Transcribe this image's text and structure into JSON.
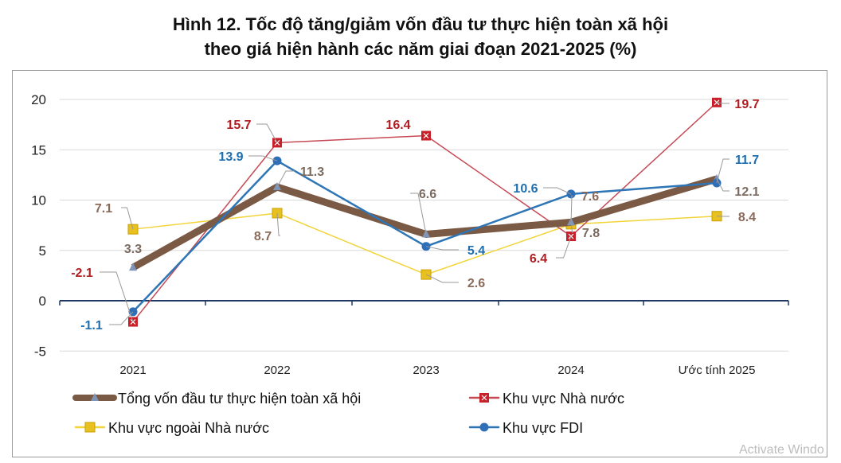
{
  "title_line1": "Hình 12. Tốc độ tăng/giảm vốn đầu tư thực hiện toàn xã hội",
  "title_line2": "theo giá hiện hành các năm giai đoạn 2021-2025 (%)",
  "watermark": "Activate Windo",
  "chart_data": {
    "type": "line",
    "categories": [
      "2021",
      "2022",
      "2023",
      "2024",
      "Ước tính 2025"
    ],
    "ylim": [
      -5,
      20
    ],
    "yticks": [
      -5,
      0,
      5,
      10,
      15,
      20
    ],
    "grid": true,
    "legend_position": "bottom",
    "series": [
      {
        "name": "Tổng vốn đầu tư thực hiện toàn xã hội",
        "values": [
          3.3,
          11.3,
          6.6,
          7.8,
          12.1
        ],
        "color": "#7b5a45",
        "label_color": "#7a6a60",
        "marker": "triangle",
        "marker_color": "#7f95b8"
      },
      {
        "name": "Khu vực Nhà nước",
        "values": [
          -2.1,
          15.7,
          16.4,
          6.4,
          19.7
        ],
        "color": "#c64a55",
        "label_color": "#b01e23",
        "marker": "square-x",
        "marker_color": "#c8202a"
      },
      {
        "name": "Khu vực ngoài Nhà nước",
        "values": [
          7.1,
          8.7,
          2.6,
          7.6,
          8.4
        ],
        "color": "#f2d43a",
        "label_color": "#8a6a5a",
        "marker": "square",
        "marker_color": "#e8c020"
      },
      {
        "name": "Khu vực FDI",
        "values": [
          -1.1,
          13.9,
          5.4,
          10.6,
          11.7
        ],
        "color": "#2e75b6",
        "label_color": "#1f6fb0",
        "marker": "circle",
        "marker_color": "#2e6fb8"
      }
    ]
  }
}
